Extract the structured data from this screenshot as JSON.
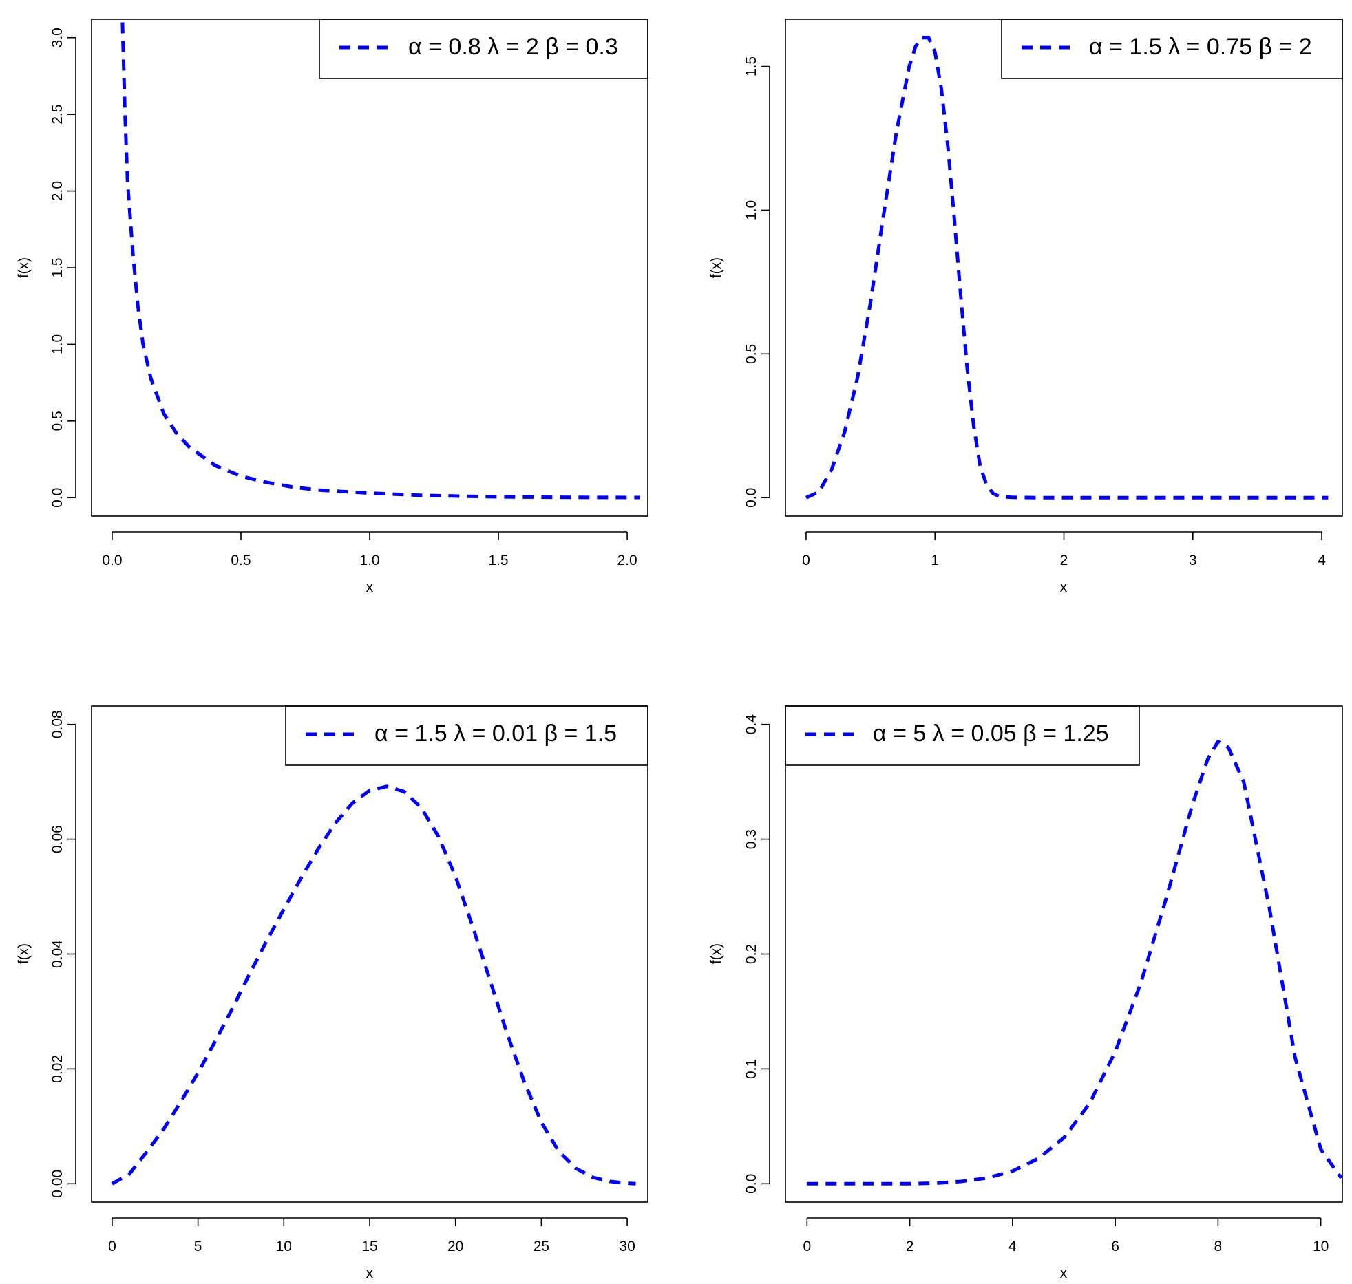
{
  "colors": {
    "series": "#0000ff",
    "axis": "#000000",
    "background": "#ffffff"
  },
  "chart_data": [
    {
      "type": "line",
      "params": {
        "alpha": 0.8,
        "lambda": 2,
        "beta": 0.3
      },
      "legend": {
        "text": "α = 0.8  λ = 2  β = 0.3",
        "position": "top-right"
      },
      "xlabel": "x",
      "ylabel": "f(x)",
      "xlim": [
        -0.08,
        2.08
      ],
      "ylim": [
        -0.12,
        3.12
      ],
      "xticks": [
        0,
        0.5,
        1,
        1.5,
        2
      ],
      "xtick_labels": [
        "0.0",
        "0.5",
        "1.0",
        "1.5",
        "2.0"
      ],
      "yticks": [
        0,
        0.5,
        1,
        1.5,
        2,
        2.5,
        3
      ],
      "ytick_labels": [
        "0.0",
        "0.5",
        "1.0",
        "1.5",
        "2.0",
        "2.5",
        "3.0"
      ],
      "series": [
        {
          "line_style": "dashed",
          "x": [
            0.04,
            0.05,
            0.06,
            0.08,
            0.1,
            0.12,
            0.15,
            0.2,
            0.25,
            0.3,
            0.4,
            0.5,
            0.6,
            0.7,
            0.8,
            1.0,
            1.2,
            1.5,
            1.8,
            2.05
          ],
          "y": [
            3.1,
            2.5,
            2.05,
            1.6,
            1.25,
            1.0,
            0.78,
            0.55,
            0.42,
            0.33,
            0.21,
            0.14,
            0.1,
            0.07,
            0.05,
            0.03,
            0.015,
            0.005,
            0.002,
            0.001
          ]
        }
      ]
    },
    {
      "type": "line",
      "params": {
        "alpha": 1.5,
        "lambda": 0.75,
        "beta": 2
      },
      "legend": {
        "text": "α = 1.5  λ = 0.75  β = 2",
        "position": "top-right"
      },
      "xlabel": "x",
      "ylabel": "f(x)",
      "xlim": [
        -0.16,
        4.16
      ],
      "ylim": [
        -0.064,
        1.664
      ],
      "xticks": [
        0,
        1,
        2,
        3,
        4
      ],
      "xtick_labels": [
        "0",
        "1",
        "2",
        "3",
        "4"
      ],
      "yticks": [
        0,
        0.5,
        1,
        1.5
      ],
      "ytick_labels": [
        "0.0",
        "0.5",
        "1.0",
        "1.5"
      ],
      "series": [
        {
          "line_style": "dashed",
          "x": [
            0,
            0.1,
            0.2,
            0.3,
            0.4,
            0.5,
            0.6,
            0.7,
            0.8,
            0.85,
            0.9,
            0.95,
            1.0,
            1.05,
            1.1,
            1.15,
            1.2,
            1.25,
            1.3,
            1.35,
            1.4,
            1.45,
            1.5,
            1.6,
            1.8,
            2.0,
            2.5,
            3.0,
            3.5,
            4.0,
            4.05
          ],
          "y": [
            0,
            0.02,
            0.1,
            0.23,
            0.42,
            0.68,
            0.98,
            1.27,
            1.5,
            1.57,
            1.6,
            1.6,
            1.55,
            1.42,
            1.22,
            0.97,
            0.7,
            0.45,
            0.25,
            0.11,
            0.045,
            0.015,
            0.004,
            0.001,
            0,
            0,
            0,
            0,
            0,
            0,
            0
          ]
        }
      ]
    },
    {
      "type": "line",
      "params": {
        "alpha": 1.5,
        "lambda": 0.01,
        "beta": 1.5
      },
      "legend": {
        "text": "α = 1.5  λ = 0.01  β = 1.5",
        "position": "top-right"
      },
      "xlabel": "x",
      "ylabel": "f(x)",
      "xlim": [
        -1.2,
        31.2
      ],
      "ylim": [
        -0.0032,
        0.0832
      ],
      "xticks": [
        0,
        5,
        10,
        15,
        20,
        25,
        30
      ],
      "xtick_labels": [
        "0",
        "5",
        "10",
        "15",
        "20",
        "25",
        "30"
      ],
      "yticks": [
        0,
        0.02,
        0.04,
        0.06,
        0.08
      ],
      "ytick_labels": [
        "0.00",
        "0.02",
        "0.04",
        "0.06",
        "0.08"
      ],
      "series": [
        {
          "line_style": "dashed",
          "x": [
            0,
            1,
            2,
            3,
            4,
            5,
            6,
            7,
            8,
            9,
            10,
            11,
            12,
            13,
            14,
            15,
            16,
            17,
            18,
            19,
            20,
            21,
            22,
            23,
            24,
            25,
            26,
            27,
            28,
            29,
            30,
            30.5
          ],
          "y": [
            0,
            0.0017,
            0.0055,
            0.0095,
            0.0143,
            0.0193,
            0.0248,
            0.0305,
            0.0365,
            0.0423,
            0.0478,
            0.0532,
            0.0583,
            0.0628,
            0.0663,
            0.0685,
            0.0692,
            0.0683,
            0.0655,
            0.0605,
            0.0535,
            0.0448,
            0.0355,
            0.0262,
            0.0178,
            0.0107,
            0.0057,
            0.0027,
            0.0011,
            0.0004,
            0.0001,
            0
          ]
        }
      ]
    },
    {
      "type": "line",
      "params": {
        "alpha": 5,
        "lambda": 0.05,
        "beta": 1.25
      },
      "legend": {
        "text": "α = 5  λ = 0.05  β = 1.25",
        "position": "top-left"
      },
      "xlabel": "x",
      "ylabel": "f(x)",
      "xlim": [
        -0.42,
        10.42
      ],
      "ylim": [
        -0.016,
        0.416
      ],
      "xticks": [
        0,
        2,
        4,
        6,
        8,
        10
      ],
      "xtick_labels": [
        "0",
        "2",
        "4",
        "6",
        "8",
        "10"
      ],
      "yticks": [
        0,
        0.1,
        0.2,
        0.3,
        0.4
      ],
      "ytick_labels": [
        "0.0",
        "0.1",
        "0.2",
        "0.3",
        "0.4"
      ],
      "series": [
        {
          "line_style": "dashed",
          "x": [
            0,
            1,
            2,
            2.5,
            3,
            3.5,
            4,
            4.5,
            5,
            5.5,
            6,
            6.5,
            7,
            7.5,
            7.8,
            8,
            8.2,
            8.5,
            9,
            9.5,
            10,
            10.4
          ],
          "y": [
            0,
            0,
            0,
            0.0005,
            0.002,
            0.005,
            0.011,
            0.022,
            0.04,
            0.07,
            0.115,
            0.175,
            0.25,
            0.33,
            0.37,
            0.385,
            0.38,
            0.35,
            0.24,
            0.11,
            0.03,
            0.005
          ]
        }
      ]
    }
  ]
}
